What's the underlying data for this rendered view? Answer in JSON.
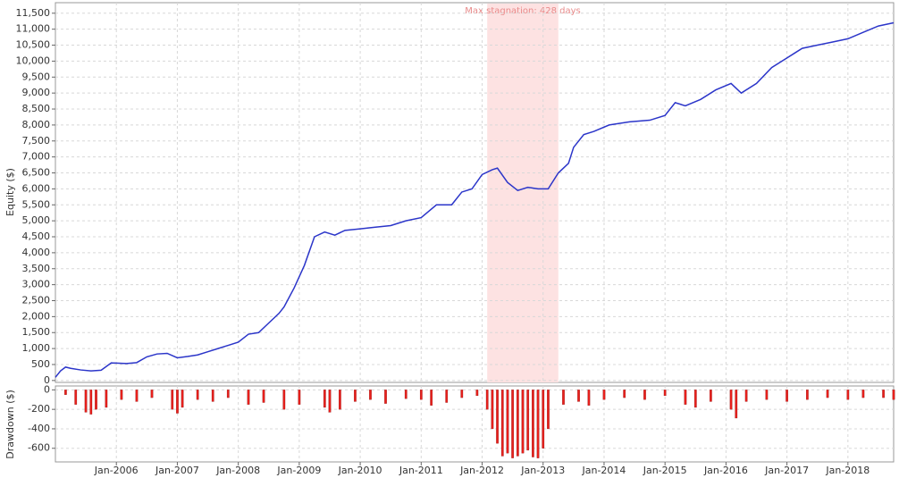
{
  "chart_data": [
    {
      "type": "line",
      "y_label": "Equity ($)",
      "color": "#2b35c9",
      "grid": true,
      "x": [
        "2005-01",
        "2005-02",
        "2005-03",
        "2005-04",
        "2005-06",
        "2005-08",
        "2005-10",
        "2005-12",
        "2006-03",
        "2006-05",
        "2006-07",
        "2006-09",
        "2006-11",
        "2007-01",
        "2007-03",
        "2007-05",
        "2007-07",
        "2007-09",
        "2007-11",
        "2008-01",
        "2008-03",
        "2008-05",
        "2008-07",
        "2008-09",
        "2008-10",
        "2008-12",
        "2009-02",
        "2009-04",
        "2009-06",
        "2009-08",
        "2009-10",
        "2010-01",
        "2010-04",
        "2010-07",
        "2010-10",
        "2011-01",
        "2011-04",
        "2011-07",
        "2011-09",
        "2011-11",
        "2012-01",
        "2012-03",
        "2012-04",
        "2012-06",
        "2012-08",
        "2012-10",
        "2012-12",
        "2013-02",
        "2013-04",
        "2013-06",
        "2013-07",
        "2013-09",
        "2013-11",
        "2014-02",
        "2014-06",
        "2014-10",
        "2015-01",
        "2015-03",
        "2015-05",
        "2015-08",
        "2015-11",
        "2016-02",
        "2016-04",
        "2016-07",
        "2016-10",
        "2017-01",
        "2017-04",
        "2017-07",
        "2017-10",
        "2018-01",
        "2018-04",
        "2018-07",
        "2018-10"
      ],
      "values": [
        100,
        300,
        420,
        380,
        330,
        300,
        320,
        550,
        530,
        560,
        740,
        830,
        850,
        710,
        750,
        800,
        900,
        1000,
        1100,
        1200,
        1450,
        1500,
        1800,
        2100,
        2300,
        2900,
        3600,
        4500,
        4650,
        4550,
        4700,
        4750,
        4800,
        4850,
        5000,
        5100,
        5500,
        5500,
        5900,
        6000,
        6450,
        6600,
        6650,
        6200,
        5950,
        6050,
        6000,
        6000,
        6500,
        6800,
        7300,
        7700,
        7800,
        8000,
        8100,
        8150,
        8300,
        8700,
        8600,
        8800,
        9100,
        9300,
        9000,
        9300,
        9800,
        10100,
        10400,
        10500,
        10600,
        10700,
        10900,
        11100,
        11200
      ],
      "ylim": [
        -60,
        11830
      ],
      "yticks": [
        0,
        500,
        {
          "value": 1000,
          "label": "1,000"
        },
        {
          "value": 1500,
          "label": "1,500"
        },
        {
          "value": 2000,
          "label": "2,000"
        },
        {
          "value": 2500,
          "label": "2,500"
        },
        {
          "value": 3000,
          "label": "3,000"
        },
        {
          "value": 3500,
          "label": "3,500"
        },
        {
          "value": 4000,
          "label": "4,000"
        },
        {
          "value": 4500,
          "label": "4,500"
        },
        {
          "value": 5000,
          "label": "5,000"
        },
        {
          "value": 5500,
          "label": "5,500"
        },
        {
          "value": 6000,
          "label": "6,000"
        },
        {
          "value": 6500,
          "label": "6,500"
        },
        {
          "value": 7000,
          "label": "7,000"
        },
        {
          "value": 7500,
          "label": "7,500"
        },
        {
          "value": 8000,
          "label": "8,000"
        },
        {
          "value": 8500,
          "label": "8,500"
        },
        {
          "value": 9000,
          "label": "9,000"
        },
        {
          "value": 9500,
          "label": "9,500"
        },
        {
          "value": 10000,
          "label": "10,000"
        },
        {
          "value": 10500,
          "label": "10,500"
        },
        {
          "value": 11000,
          "label": "11,000"
        },
        {
          "value": 11500,
          "label": "11,500"
        }
      ],
      "annotation": {
        "label": "Max stagnation: 428 days",
        "x": [
          "2012-02",
          "2013-04"
        ],
        "color": "#fde2e2"
      }
    },
    {
      "type": "bar",
      "y_label": "Drawdown ($)",
      "color": "#e8201c",
      "grid": true,
      "x": [
        "2005-03",
        "2005-05",
        "2005-07",
        "2005-08",
        "2005-09",
        "2005-11",
        "2006-02",
        "2006-05",
        "2006-08",
        "2006-12",
        "2007-01",
        "2007-02",
        "2007-05",
        "2007-08",
        "2007-11",
        "2008-03",
        "2008-06",
        "2008-10",
        "2009-01",
        "2009-06",
        "2009-07",
        "2009-09",
        "2009-12",
        "2010-03",
        "2010-06",
        "2010-10",
        "2011-01",
        "2011-03",
        "2011-06",
        "2011-09",
        "2011-12",
        "2012-02",
        "2012-03",
        "2012-04",
        "2012-05",
        "2012-06",
        "2012-07",
        "2012-08",
        "2012-09",
        "2012-10",
        "2012-11",
        "2012-12",
        "2013-01",
        "2013-02",
        "2013-05",
        "2013-08",
        "2013-10",
        "2014-01",
        "2014-05",
        "2014-09",
        "2015-01",
        "2015-05",
        "2015-07",
        "2015-10",
        "2016-02",
        "2016-03",
        "2016-05",
        "2016-09",
        "2017-01",
        "2017-05",
        "2017-09",
        "2018-01",
        "2018-04",
        "2018-08",
        "2018-10"
      ],
      "values": [
        -50,
        -150,
        -230,
        -250,
        -200,
        -180,
        -100,
        -120,
        -80,
        -200,
        -240,
        -180,
        -100,
        -120,
        -80,
        -150,
        -130,
        -200,
        -150,
        -180,
        -230,
        -200,
        -120,
        -100,
        -140,
        -90,
        -100,
        -160,
        -130,
        -80,
        -60,
        -200,
        -400,
        -550,
        -680,
        -650,
        -700,
        -680,
        -650,
        -620,
        -690,
        -700,
        -600,
        -400,
        -150,
        -120,
        -160,
        -100,
        -80,
        -100,
        -60,
        -150,
        -180,
        -120,
        -200,
        -290,
        -120,
        -100,
        -120,
        -100,
        -80,
        -100,
        -80,
        -80,
        -100
      ],
      "ylim": [
        -740,
        40
      ],
      "yticks": [
        0,
        -200,
        -400,
        -600
      ],
      "xlim": [
        "2005-01",
        "2018-10"
      ],
      "xticks": [
        {
          "value": "2006-01",
          "label": "Jan-2006"
        },
        {
          "value": "2007-01",
          "label": "Jan-2007"
        },
        {
          "value": "2008-01",
          "label": "Jan-2008"
        },
        {
          "value": "2009-01",
          "label": "Jan-2009"
        },
        {
          "value": "2010-01",
          "label": "Jan-2010"
        },
        {
          "value": "2011-01",
          "label": "Jan-2011"
        },
        {
          "value": "2012-01",
          "label": "Jan-2012"
        },
        {
          "value": "2013-01",
          "label": "Jan-2013"
        },
        {
          "value": "2014-01",
          "label": "Jan-2014"
        },
        {
          "value": "2015-01",
          "label": "Jan-2015"
        },
        {
          "value": "2016-01",
          "label": "Jan-2016"
        },
        {
          "value": "2017-01",
          "label": "Jan-2017"
        },
        {
          "value": "2018-01",
          "label": "Jan-2018"
        }
      ]
    }
  ]
}
